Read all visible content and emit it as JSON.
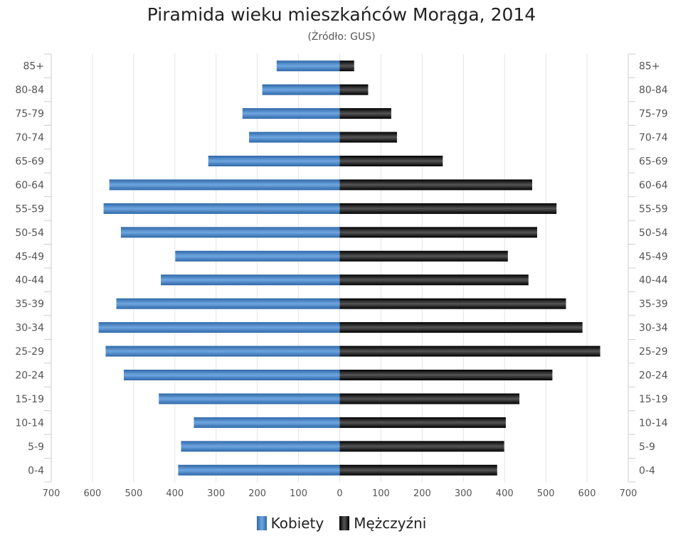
{
  "chart_data": {
    "type": "bar",
    "orientation": "horizontal-pyramid",
    "title": "Piramida wieku mieszkańców Morąga, 2014",
    "subtitle": "(Źródło: GUS)",
    "categories": [
      "85+",
      "80-84",
      "75-79",
      "70-74",
      "65-69",
      "60-64",
      "55-59",
      "50-54",
      "45-49",
      "40-44",
      "35-39",
      "30-34",
      "25-29",
      "20-24",
      "15-19",
      "10-14",
      "5-9",
      "0-4"
    ],
    "series": [
      {
        "name": "Kobiety",
        "color": "#4a86c8",
        "side": "left",
        "values": [
          153,
          188,
          236,
          220,
          319,
          559,
          573,
          531,
          399,
          434,
          542,
          585,
          568,
          524,
          439,
          354,
          385,
          392
        ]
      },
      {
        "name": "Mężczyźni",
        "color": "#111111",
        "side": "right",
        "values": [
          35,
          69,
          125,
          139,
          250,
          467,
          526,
          479,
          408,
          458,
          549,
          589,
          632,
          516,
          436,
          403,
          399,
          382
        ]
      }
    ],
    "xlim": [
      -700,
      700
    ],
    "xticks": [
      "700",
      "600",
      "500",
      "400",
      "300",
      "200",
      "100",
      "0",
      "100",
      "200",
      "300",
      "400",
      "500",
      "600",
      "700"
    ],
    "grid": true,
    "legend": "bottom"
  }
}
